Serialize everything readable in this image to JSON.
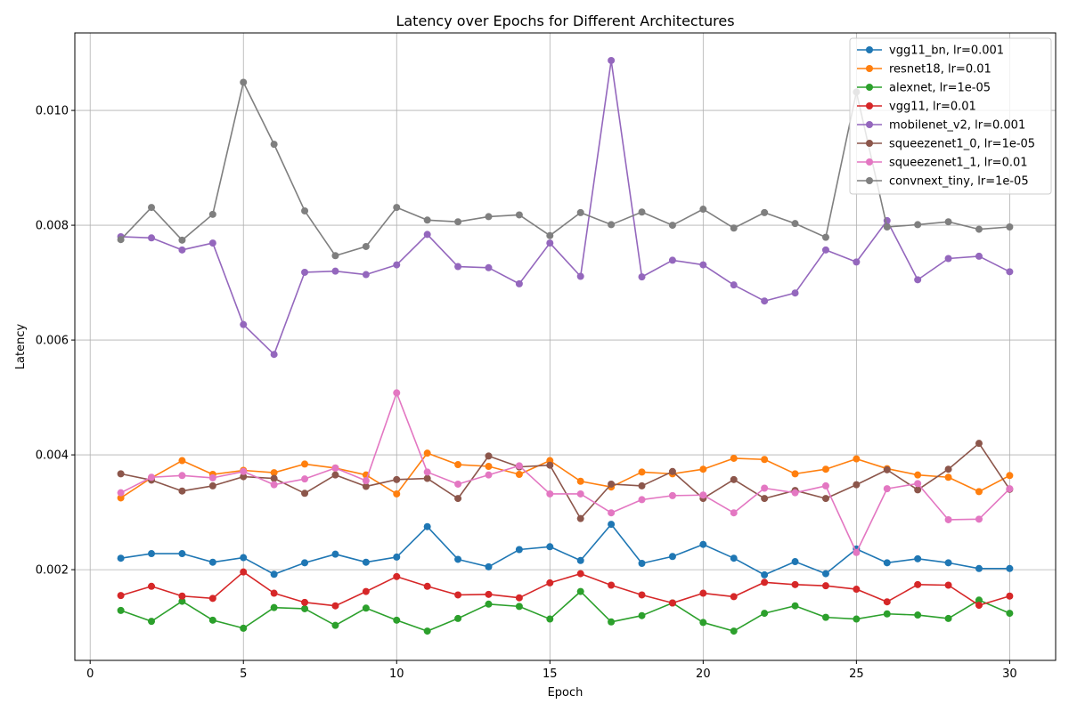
{
  "chart_data": {
    "type": "line",
    "title": "Latency over Epochs for Different Architectures",
    "xlabel": "Epoch",
    "ylabel": "Latency",
    "xlim": [
      -0.5,
      31.5
    ],
    "ylim": [
      0.00042,
      0.01135
    ],
    "xticks": [
      0,
      5,
      10,
      15,
      20,
      25,
      30
    ],
    "yticks": [
      0.002,
      0.004,
      0.006,
      0.008,
      0.01
    ],
    "ytick_labels": [
      "0.002",
      "0.004",
      "0.006",
      "0.008",
      "0.010"
    ],
    "grid": true,
    "legend_position": "top-right",
    "x": [
      1,
      2,
      3,
      4,
      5,
      6,
      7,
      8,
      9,
      10,
      11,
      12,
      13,
      14,
      15,
      16,
      17,
      18,
      19,
      20,
      21,
      22,
      23,
      24,
      25,
      26,
      27,
      28,
      29,
      30
    ],
    "series": [
      {
        "name": "vgg11_bn, lr=0.001",
        "color": "#1f77b4",
        "values": [
          0.0022,
          0.00228,
          0.00228,
          0.00213,
          0.00221,
          0.00192,
          0.00212,
          0.00227,
          0.00213,
          0.00222,
          0.00275,
          0.00218,
          0.00205,
          0.00235,
          0.0024,
          0.00216,
          0.00279,
          0.00211,
          0.00223,
          0.00244,
          0.0022,
          0.00191,
          0.00214,
          0.00193,
          0.00236,
          0.00212,
          0.00219,
          0.00212,
          0.00202,
          0.00202
        ]
      },
      {
        "name": "resnet18, lr=0.01",
        "color": "#ff7f0e",
        "values": [
          0.00325,
          0.0036,
          0.0039,
          0.00366,
          0.00373,
          0.00369,
          0.00384,
          0.00377,
          0.00365,
          0.00332,
          0.00403,
          0.00383,
          0.0038,
          0.00366,
          0.0039,
          0.00354,
          0.00344,
          0.0037,
          0.00367,
          0.00375,
          0.00394,
          0.00392,
          0.00367,
          0.00375,
          0.00393,
          0.00376,
          0.00365,
          0.00361,
          0.00336,
          0.00364
        ]
      },
      {
        "name": "alexnet, lr=1e-05",
        "color": "#2ca02c",
        "values": [
          0.00129,
          0.0011,
          0.00145,
          0.00112,
          0.00098,
          0.00134,
          0.00132,
          0.00103,
          0.00133,
          0.00112,
          0.00093,
          0.00115,
          0.0014,
          0.00136,
          0.00114,
          0.00162,
          0.00109,
          0.0012,
          0.00142,
          0.00108,
          0.00093,
          0.00124,
          0.00137,
          0.00117,
          0.00114,
          0.00123,
          0.00121,
          0.00115,
          0.00147,
          0.00124
        ]
      },
      {
        "name": "vgg11, lr=0.01",
        "color": "#d62728",
        "values": [
          0.00155,
          0.00171,
          0.00154,
          0.0015,
          0.00196,
          0.00159,
          0.00143,
          0.00137,
          0.00162,
          0.00188,
          0.00171,
          0.00156,
          0.00157,
          0.00151,
          0.00177,
          0.00193,
          0.00173,
          0.00156,
          0.00142,
          0.00159,
          0.00153,
          0.00178,
          0.00174,
          0.00172,
          0.00166,
          0.00144,
          0.00174,
          0.00173,
          0.00138,
          0.00154
        ]
      },
      {
        "name": "mobilenet_v2, lr=0.001",
        "color": "#9467bd",
        "values": [
          0.0078,
          0.00778,
          0.00757,
          0.00769,
          0.00627,
          0.00575,
          0.00718,
          0.0072,
          0.00714,
          0.00731,
          0.00784,
          0.00728,
          0.00726,
          0.00698,
          0.00769,
          0.00711,
          0.01087,
          0.0071,
          0.00739,
          0.00731,
          0.00696,
          0.00668,
          0.00682,
          0.00757,
          0.00736,
          0.00808,
          0.00705,
          0.00742,
          0.00746,
          0.00719
        ]
      },
      {
        "name": "squeezenet1_0, lr=1e-05",
        "color": "#8c564b",
        "values": [
          0.00367,
          0.00356,
          0.00337,
          0.00346,
          0.00362,
          0.00359,
          0.00333,
          0.00365,
          0.00345,
          0.00357,
          0.00359,
          0.00324,
          0.00398,
          0.00379,
          0.00382,
          0.00289,
          0.00349,
          0.00346,
          0.00371,
          0.00324,
          0.00357,
          0.00324,
          0.00338,
          0.00324,
          0.00348,
          0.00374,
          0.00339,
          0.00375,
          0.0042,
          0.0034
        ]
      },
      {
        "name": "squeezenet1_1, lr=0.01",
        "color": "#e377c2",
        "values": [
          0.00334,
          0.00361,
          0.00364,
          0.0036,
          0.00371,
          0.00348,
          0.00358,
          0.00377,
          0.00355,
          0.00508,
          0.0037,
          0.00349,
          0.00365,
          0.00381,
          0.00332,
          0.00332,
          0.00299,
          0.00322,
          0.00329,
          0.0033,
          0.00299,
          0.00342,
          0.00334,
          0.00346,
          0.0023,
          0.00341,
          0.0035,
          0.00287,
          0.00288,
          0.00341
        ]
      },
      {
        "name": "convnext_tiny, lr=1e-05",
        "color": "#7f7f7f",
        "values": [
          0.00775,
          0.00831,
          0.00774,
          0.00819,
          0.01049,
          0.00941,
          0.00825,
          0.00747,
          0.00763,
          0.00831,
          0.00809,
          0.00806,
          0.00815,
          0.00818,
          0.00782,
          0.00822,
          0.00801,
          0.00823,
          0.008,
          0.00828,
          0.00795,
          0.00822,
          0.00803,
          0.00779,
          0.01032,
          0.00797,
          0.00801,
          0.00806,
          0.00793,
          0.00797
        ]
      }
    ]
  }
}
